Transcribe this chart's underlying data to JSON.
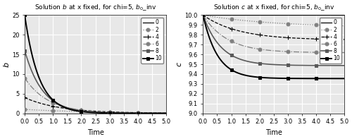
{
  "title_b": "Solution $b$ at x fixed, for chi=5, $b_0$_inv",
  "title_c": "Solution $c$ at x fixed, for chi=5, $b_0$_inv",
  "xlabel": "Time",
  "ylabel_b": "b",
  "ylabel_c": "c",
  "xi_values": [
    0,
    2,
    4,
    6,
    8,
    10
  ],
  "chi": 5,
  "ylim_b": [
    0,
    25
  ],
  "ylim_c": [
    9.0,
    10.0
  ],
  "xticks": [
    0,
    0.5,
    1.0,
    1.5,
    2.0,
    2.5,
    3.0,
    3.5,
    4.0,
    4.5,
    5.0
  ],
  "yticks_b": [
    0,
    5,
    10,
    15,
    20,
    25
  ],
  "yticks_c": [
    9.0,
    9.1,
    9.2,
    9.3,
    9.4,
    9.5,
    9.6,
    9.7,
    9.8,
    9.9,
    10.0
  ],
  "line_defs": [
    {
      "ls": "-",
      "marker": ">",
      "ms": 3.5,
      "lw": 0.9,
      "gray": 0.0
    },
    {
      "ls": ":",
      "marker": "o",
      "ms": 3.5,
      "lw": 0.9,
      "gray": 0.4
    },
    {
      "ls": "--",
      "marker": "+",
      "ms": 4.5,
      "lw": 0.9,
      "gray": 0.0
    },
    {
      "ls": "-.",
      "marker": "o",
      "ms": 3.5,
      "lw": 0.9,
      "gray": 0.4
    },
    {
      "ls": "-",
      "marker": "s",
      "ms": 3.5,
      "lw": 1.2,
      "gray": 0.3
    },
    {
      "ls": "-",
      "marker": "s",
      "ms": 3.5,
      "lw": 1.4,
      "gray": 0.0
    }
  ],
  "legend_labels": [
    "0",
    "2",
    "4",
    "6",
    "8",
    "10"
  ],
  "marker_times": [
    0,
    1,
    2,
    3,
    4
  ],
  "bg_color": "#e8e8e8",
  "grid_color": "#ffffff",
  "c_background": 10.0
}
